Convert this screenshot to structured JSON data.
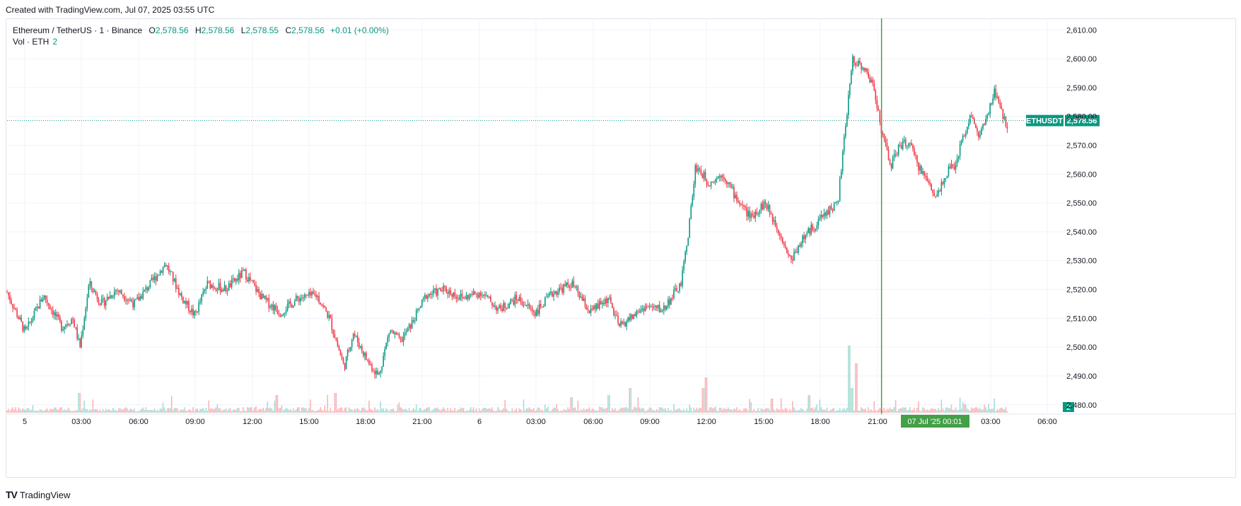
{
  "header": {
    "created_text": "Created with TradingView.com, Jul 07, 2025 03:55 UTC"
  },
  "legend": {
    "symbol": "Ethereum / TetherUS · 1 · Binance",
    "open_label": "O",
    "open": "2,578.56",
    "high_label": "H",
    "high": "2,578.56",
    "low_label": "L",
    "low": "2,578.55",
    "close_label": "C",
    "close": "2,578.56",
    "change": "+0.01 (+0.00%)",
    "vol_label": "Vol · ETH",
    "vol_value": "2"
  },
  "price_label": {
    "ticker": "ETHUSDT",
    "price": "2,578.56"
  },
  "volume_badge": "2",
  "crosshair_label": {
    "date": "07 Jul '25",
    "time": "00:01"
  },
  "footer": {
    "logo": "TV",
    "brand": "TradingView"
  },
  "colors": {
    "up": "#089981",
    "down": "#f23645",
    "up_vol": "#a9dcd3",
    "down_vol": "#f9b4b8",
    "grid": "#f0f3fa",
    "text": "#131722"
  },
  "chart_data": {
    "type": "candlestick",
    "symbol": "ETHUSDT",
    "interval": "1",
    "x_tick_labels": [
      "5",
      "03:00",
      "06:00",
      "09:00",
      "12:00",
      "15:00",
      "18:00",
      "21:00",
      "6",
      "03:00",
      "06:00",
      "09:00",
      "12:00",
      "15:00",
      "18:00",
      "21:00",
      "03:00",
      "06:00"
    ],
    "y_tick_labels": [
      "2,610.00",
      "2,600.00",
      "2,590.00",
      "2,580.00",
      "2,570.00",
      "2,560.00",
      "2,550.00",
      "2,540.00",
      "2,530.00",
      "2,520.00",
      "2,510.00",
      "2,500.00",
      "2,490.00",
      "2,480.00"
    ],
    "y_ticks": [
      2610,
      2600,
      2590,
      2580,
      2570,
      2560,
      2550,
      2540,
      2530,
      2520,
      2510,
      2500,
      2490,
      2480
    ],
    "ylim": [
      2477,
      2614
    ],
    "grid": true,
    "last_price": 2578.56,
    "price_path": [
      [
        0,
        2519
      ],
      [
        1.0,
        2505
      ],
      [
        2.0,
        2518
      ],
      [
        3.0,
        2507
      ],
      [
        3.6,
        2510
      ],
      [
        4.0,
        2500
      ],
      [
        4.5,
        2522
      ],
      [
        5.2,
        2515
      ],
      [
        6.0,
        2520
      ],
      [
        7.0,
        2515
      ],
      [
        8.0,
        2523
      ],
      [
        8.7,
        2529
      ],
      [
        9.6,
        2517
      ],
      [
        10.3,
        2511
      ],
      [
        11.0,
        2522
      ],
      [
        12.0,
        2520
      ],
      [
        13.0,
        2526
      ],
      [
        14.0,
        2517
      ],
      [
        15.0,
        2512
      ],
      [
        16.0,
        2517
      ],
      [
        17.0,
        2518
      ],
      [
        17.7,
        2510
      ],
      [
        18.5,
        2493
      ],
      [
        19.0,
        2505
      ],
      [
        19.8,
        2495
      ],
      [
        20.4,
        2490
      ],
      [
        21.0,
        2506
      ],
      [
        21.6,
        2502
      ],
      [
        22.2,
        2508
      ],
      [
        23.0,
        2518
      ],
      [
        24.0,
        2520
      ],
      [
        25.0,
        2517
      ],
      [
        26.0,
        2519
      ],
      [
        27.0,
        2513
      ],
      [
        28.0,
        2517
      ],
      [
        29.0,
        2512
      ],
      [
        30.0,
        2519
      ],
      [
        31.0,
        2522
      ],
      [
        32.0,
        2512
      ],
      [
        33.0,
        2517
      ],
      [
        33.6,
        2507
      ],
      [
        34.2,
        2510
      ],
      [
        35.0,
        2514
      ],
      [
        36.0,
        2513
      ],
      [
        37.0,
        2522
      ],
      [
        37.4,
        2540
      ],
      [
        37.8,
        2563
      ],
      [
        38.5,
        2557
      ],
      [
        39.3,
        2560
      ],
      [
        40.0,
        2552
      ],
      [
        40.8,
        2545
      ],
      [
        41.6,
        2550
      ],
      [
        42.4,
        2540
      ],
      [
        43.0,
        2530
      ],
      [
        43.6,
        2537
      ],
      [
        44.3,
        2542
      ],
      [
        45.0,
        2547
      ],
      [
        45.6,
        2550
      ],
      [
        46.0,
        2575
      ],
      [
        46.4,
        2600
      ],
      [
        47.0,
        2597
      ],
      [
        47.6,
        2590
      ],
      [
        48.0,
        2575
      ],
      [
        48.5,
        2563
      ],
      [
        49.0,
        2570
      ],
      [
        49.5,
        2571
      ],
      [
        50.0,
        2563
      ],
      [
        50.5,
        2558
      ],
      [
        51.0,
        2552
      ],
      [
        51.5,
        2560
      ],
      [
        52.0,
        2563
      ],
      [
        52.5,
        2573
      ],
      [
        52.9,
        2581
      ],
      [
        53.3,
        2573
      ],
      [
        53.8,
        2579
      ],
      [
        54.2,
        2589
      ],
      [
        54.5,
        2583
      ],
      [
        54.9,
        2576
      ]
    ],
    "volume_spikes": [
      [
        46.2,
        95
      ],
      [
        46.6,
        70
      ],
      [
        46.4,
        35
      ],
      [
        38.4,
        50
      ],
      [
        38.2,
        35
      ],
      [
        18.0,
        28
      ],
      [
        14.8,
        25
      ],
      [
        34.2,
        35
      ],
      [
        33.0,
        25
      ],
      [
        31.0,
        22
      ],
      [
        42.0,
        20
      ],
      [
        44.0,
        25
      ],
      [
        52.6,
        12
      ],
      [
        4.0,
        28
      ]
    ],
    "crosshair_x": 48.0
  }
}
